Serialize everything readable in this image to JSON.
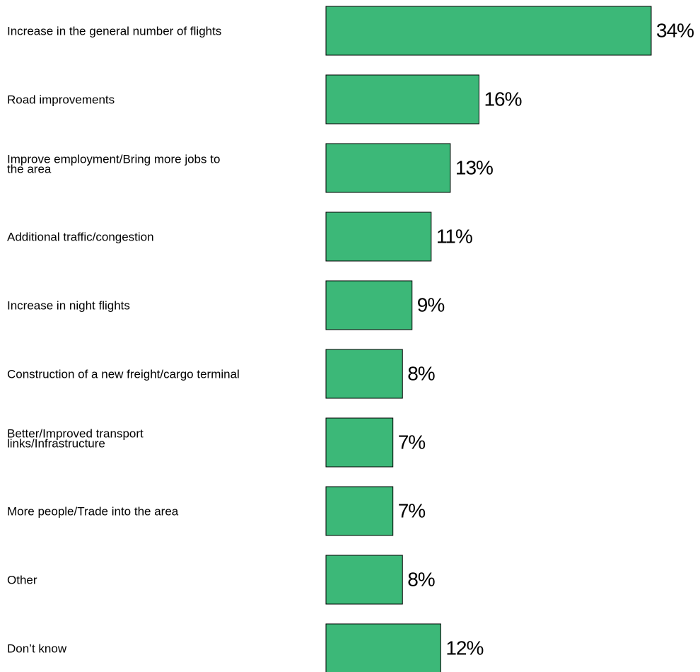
{
  "chart_data": {
    "type": "bar",
    "orientation": "horizontal",
    "categories": [
      [
        "Increase in the general number of flights"
      ],
      [
        "Road improvements"
      ],
      [
        "Improve employment/Bring more jobs to",
        "the area"
      ],
      [
        "Additional traffic/congestion"
      ],
      [
        "Increase in night flights"
      ],
      [
        "Construction of a new freight/cargo terminal"
      ],
      [
        "Better/Improved transport",
        "links/Infrastructure"
      ],
      [
        "More people/Trade into the area"
      ],
      [
        "Other"
      ],
      [
        "Don’t know"
      ]
    ],
    "values": [
      34,
      16,
      13,
      11,
      9,
      8,
      7,
      7,
      8,
      12
    ],
    "value_labels": [
      "34%",
      "16%",
      "13%",
      "11%",
      "9%",
      "8%",
      "7%",
      "7%",
      "8%",
      "12%"
    ],
    "unit": "%",
    "xlim": [
      0,
      34
    ],
    "grid": false,
    "bar_color": "#3cb878"
  }
}
